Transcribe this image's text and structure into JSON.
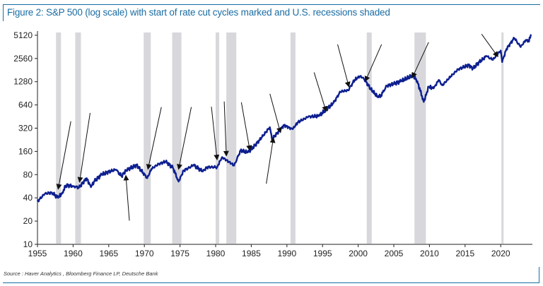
{
  "title": "Figure 2: S&P 500 (log scale) with start of rate cut cycles marked and U.S. recessions shaded",
  "source": "Source : Haver Analytics , Bloomberg Finance LP, Deutsche Bank",
  "colors": {
    "line": "#0d1f8f",
    "recession": "#d8d8dc",
    "title": "#1b6da3",
    "arrow": "#111111"
  },
  "chart_data": {
    "type": "line",
    "title": "Figure 2: S&P 500 (log scale) with start of rate cut cycles marked and U.S. recessions shaded",
    "xlabel": "",
    "ylabel": "",
    "y_scale": "log2",
    "ylim": [
      10,
      5120
    ],
    "xlim": [
      1955,
      2024.5
    ],
    "y_ticks": [
      10,
      20,
      40,
      80,
      160,
      320,
      640,
      1280,
      2560,
      5120
    ],
    "x_ticks": [
      1955,
      1960,
      1965,
      1970,
      1975,
      1980,
      1985,
      1990,
      1995,
      2000,
      2005,
      2010,
      2015,
      2020
    ],
    "grid": false,
    "series": [
      {
        "x": [
          1955,
          1956,
          1957,
          1957.9,
          1958.5,
          1959,
          1960,
          1960.8,
          1961.9,
          1962.5,
          1963,
          1964,
          1965,
          1966.0,
          1966.8,
          1967.5,
          1968.9,
          1969.5,
          1970.4,
          1971,
          1972,
          1973.0,
          1974.0,
          1974.8,
          1975.5,
          1976.9,
          1978.2,
          1978.8,
          1980.2,
          1980.9,
          1982.6,
          1983.5,
          1984.5,
          1985.5,
          1986.5,
          1987.6,
          1987.9,
          1989.6,
          1990.8,
          1991.5,
          1993,
          1994.5,
          1995.5,
          1996.5,
          1997.5,
          1998.6,
          1999.5,
          2000.2,
          2000.7,
          2001.7,
          2002.8,
          2003.2,
          2004,
          2005,
          2006,
          2007.7,
          2008.3,
          2009.2,
          2009.9,
          2010.6,
          2011.3,
          2011.8,
          2013,
          2014,
          2015.5,
          2016.1,
          2017,
          2018,
          2018.9,
          2019.6,
          2020.0,
          2020.2,
          2020.8,
          2021.9,
          2022.8,
          2023.5,
          2023.8,
          2024.3
        ],
        "y": [
          36,
          45,
          47,
          40,
          47,
          58,
          57,
          54,
          72,
          55,
          66,
          80,
          87,
          93,
          77,
          92,
          106,
          92,
          72,
          95,
          110,
          118,
          98,
          65,
          90,
          106,
          88,
          100,
          100,
          135,
          105,
          165,
          155,
          190,
          245,
          330,
          230,
          350,
          310,
          380,
          450,
          460,
          560,
          670,
          950,
          990,
          1350,
          1500,
          1450,
          1050,
          800,
          850,
          1130,
          1200,
          1300,
          1550,
          1300,
          700,
          1100,
          1050,
          1350,
          1150,
          1500,
          1850,
          2100,
          1900,
          2300,
          2750,
          2450,
          2950,
          3250,
          2300,
          3400,
          4700,
          3600,
          4450,
          4200,
          5100
        ]
      }
    ],
    "recessions": [
      [
        1957.6,
        1958.3
      ],
      [
        1960.3,
        1961.1
      ],
      [
        1969.9,
        1970.9
      ],
      [
        1973.9,
        1975.2
      ],
      [
        1980.0,
        1980.5
      ],
      [
        1981.5,
        1982.9
      ],
      [
        1990.5,
        1991.2
      ],
      [
        2001.2,
        2001.9
      ],
      [
        2007.9,
        2009.5
      ],
      [
        2020.1,
        2020.3
      ]
    ],
    "rate_cut_starts": [
      {
        "date": 1957.9,
        "value": 52,
        "from": "above"
      },
      {
        "date": 1960.9,
        "value": 64,
        "from": "above"
      },
      {
        "date": 1967.4,
        "value": 78,
        "from": "below"
      },
      {
        "date": 1970.5,
        "value": 94,
        "from": "above"
      },
      {
        "date": 1974.8,
        "value": 94,
        "from": "above"
      },
      {
        "date": 1980.2,
        "value": 125,
        "from": "above"
      },
      {
        "date": 1981.5,
        "value": 140,
        "from": "above"
      },
      {
        "date": 1984.8,
        "value": 165,
        "from": "below-left"
      },
      {
        "date": 1988.1,
        "value": 240,
        "from": "below"
      },
      {
        "date": 1989.1,
        "value": 280,
        "from": "above"
      },
      {
        "date": 1995.5,
        "value": 530,
        "from": "above"
      },
      {
        "date": 1998.7,
        "value": 1100,
        "from": "above"
      },
      {
        "date": 2001.0,
        "value": 1300,
        "from": "above-right"
      },
      {
        "date": 2007.6,
        "value": 1450,
        "from": "above-right"
      },
      {
        "date": 2019.6,
        "value": 2700,
        "from": "above-left"
      }
    ]
  }
}
